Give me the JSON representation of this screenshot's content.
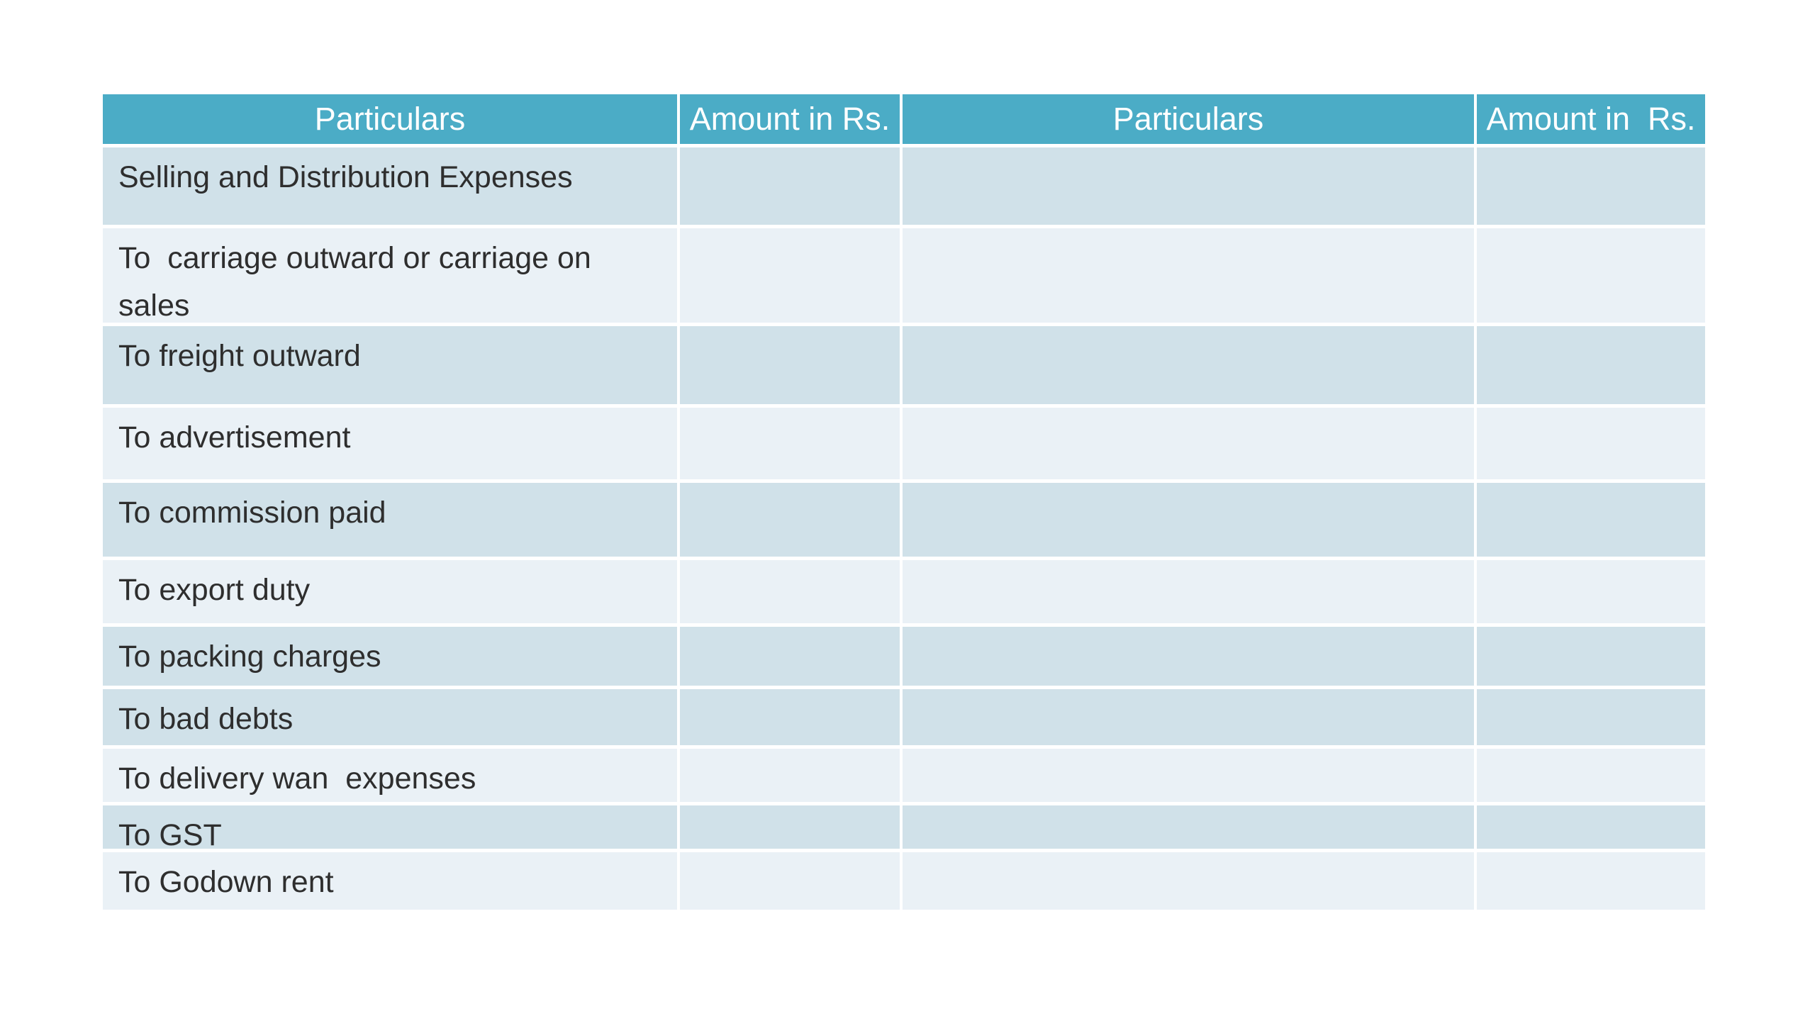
{
  "table": {
    "headers": [
      "Particulars",
      "Amount in Rs.",
      "Particulars",
      "Amount in  Rs."
    ],
    "rows": [
      {
        "c0": "Selling and Distribution Expenses",
        "c1": "",
        "c2": "",
        "c3": ""
      },
      {
        "c0": "To  carriage outward or carriage on sales",
        "c1": "",
        "c2": "",
        "c3": ""
      },
      {
        "c0": "To freight outward",
        "c1": "",
        "c2": "",
        "c3": ""
      },
      {
        "c0": "To advertisement",
        "c1": "",
        "c2": "",
        "c3": ""
      },
      {
        "c0": "To commission paid",
        "c1": "",
        "c2": "",
        "c3": ""
      },
      {
        "c0": "To export duty",
        "c1": "",
        "c2": "",
        "c3": ""
      },
      {
        "c0": "To packing charges",
        "c1": "",
        "c2": "",
        "c3": ""
      },
      {
        "c0": "To bad debts",
        "c1": "",
        "c2": "",
        "c3": ""
      },
      {
        "c0": "To delivery wan  expenses",
        "c1": "",
        "c2": "",
        "c3": ""
      },
      {
        "c0": "To GST",
        "c1": "",
        "c2": "",
        "c3": ""
      },
      {
        "c0": "To Godown rent",
        "c1": "",
        "c2": "",
        "c3": ""
      }
    ]
  },
  "colors": {
    "header_bg": "#4BACC6",
    "header_text": "#FFFFFF",
    "band_dark": "#D0E1E9",
    "band_light": "#EAF1F6",
    "body_text": "#2E2E2E",
    "grid_lines": "#FFFFFF"
  }
}
